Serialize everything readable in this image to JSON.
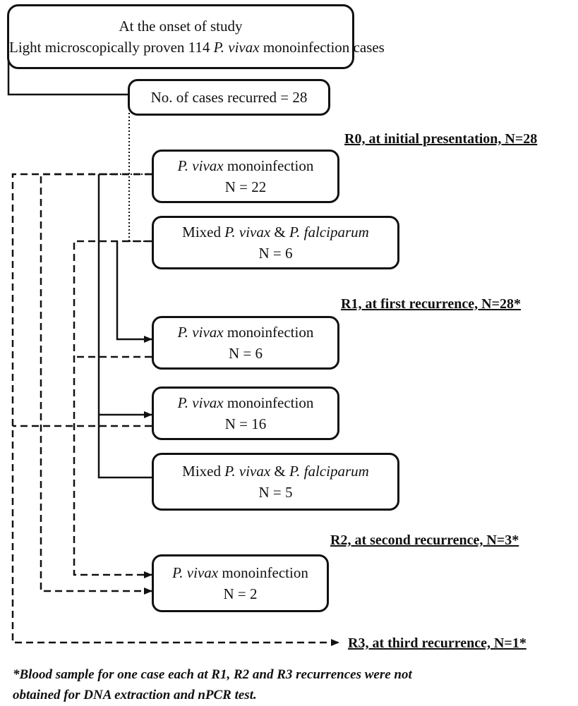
{
  "onset_box": {
    "line1": "At the onset of study",
    "line2_pre": "Light microscopically proven 114 ",
    "line2_species": "P. vivax",
    "line2_post": " monoinfection cases"
  },
  "recurred_box": {
    "text": "No. of cases recurred = 28"
  },
  "stages": {
    "r0": "R0, at initial presentation, N=28",
    "r1": "R1, at first recurrence, N=28*",
    "r2": "R2, at second recurrence, N=3*",
    "r3": "R3, at third recurrence, N=1*"
  },
  "nodes": {
    "r0_vivax": {
      "species": "P. vivax",
      "label": " monoinfection",
      "n": "N = 22"
    },
    "r0_mixed": {
      "pre": "Mixed ",
      "species1": "P. vivax",
      "mid": " & ",
      "species2": "P. falciparum",
      "n": "N = 6"
    },
    "r1_vivax_a": {
      "species": "P. vivax",
      "label": " monoinfection",
      "n": "N = 6"
    },
    "r1_vivax_b": {
      "species": "P. vivax",
      "label": " monoinfection",
      "n": "N = 16"
    },
    "r1_mixed": {
      "pre": "Mixed ",
      "species1": "P. vivax",
      "mid": " & ",
      "species2": "P. falciparum",
      "n": "N = 5"
    },
    "r2_vivax": {
      "species": "P. vivax",
      "label": " monoinfection",
      "n": "N = 2"
    }
  },
  "footnote": {
    "line1": "*Blood sample for one case each at R1, R2 and R3 recurrences were not",
    "line2": "obtained for DNA extraction and nPCR test."
  }
}
